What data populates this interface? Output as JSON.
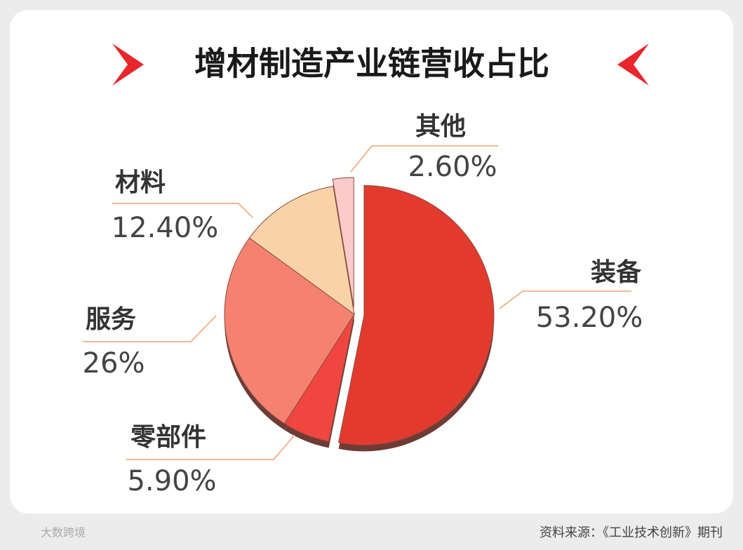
{
  "chart_data": {
    "type": "pie",
    "title": "增材制造产业链营收占比",
    "categories": [
      "装备",
      "零部件",
      "服务",
      "材料",
      "其他"
    ],
    "values": [
      53.2,
      5.9,
      26,
      12.4,
      2.6
    ],
    "value_labels": [
      "53.20%",
      "5.90%",
      "26%",
      "12.40%",
      "2.60%"
    ],
    "colors": [
      "#e33a2e",
      "#f0463f",
      "#f58270",
      "#f9d3a8",
      "#fbcaca"
    ],
    "source": "资料来源：《工业技术创新》期刊",
    "brand": "大数跨境"
  }
}
